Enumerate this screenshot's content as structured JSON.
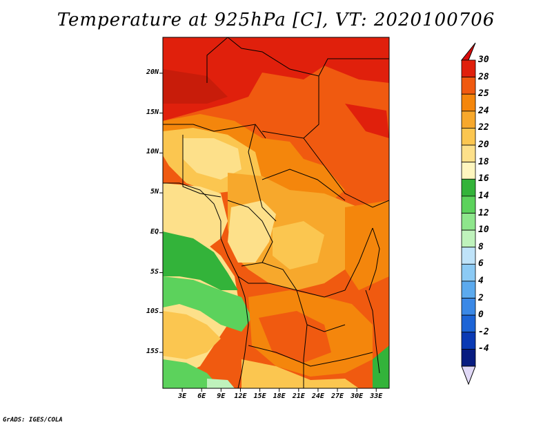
{
  "title": "Temperature at 925hPa [C], VT: 2020100706",
  "credit": "GrADS: IGES/COLA",
  "lat_ticks": [
    {
      "label": "20N",
      "lat": 20
    },
    {
      "label": "15N",
      "lat": 15
    },
    {
      "label": "10N",
      "lat": 10
    },
    {
      "label": "5N",
      "lat": 5
    },
    {
      "label": "EQ",
      "lat": 0
    },
    {
      "label": "5S",
      "lat": -5
    },
    {
      "label": "10S",
      "lat": -10
    },
    {
      "label": "15S",
      "lat": -15
    }
  ],
  "lon_ticks": [
    {
      "label": "3E",
      "lon": 3
    },
    {
      "label": "6E",
      "lon": 6
    },
    {
      "label": "9E",
      "lon": 9
    },
    {
      "label": "12E",
      "lon": 12
    },
    {
      "label": "15E",
      "lon": 15
    },
    {
      "label": "18E",
      "lon": 18
    },
    {
      "label": "21E",
      "lon": 21
    },
    {
      "label": "24E",
      "lon": 24
    },
    {
      "label": "27E",
      "lon": 27
    },
    {
      "label": "30E",
      "lon": 30
    },
    {
      "label": "33E",
      "lon": 33
    }
  ],
  "extent": {
    "lon_min": 0,
    "lon_max": 35,
    "lat_min": -19.5,
    "lat_max": 24.5
  },
  "colorbar": {
    "labels": [
      "30",
      "28",
      "25",
      "24",
      "22",
      "20",
      "18",
      "16",
      "14",
      "12",
      "10",
      "8",
      "6",
      "4",
      "2",
      "0",
      "-2",
      "-4"
    ],
    "colors": [
      "#e0200c",
      "#f05a10",
      "#f4860c",
      "#f7a82c",
      "#fbc650",
      "#fde08a",
      "#fff6bf",
      "#33b33a",
      "#5cd25c",
      "#8ee68c",
      "#bff2bc",
      "#bfe3f9",
      "#8ccaf4",
      "#5caaee",
      "#3a88e6",
      "#1c64d6",
      "#0a3ab4",
      "#081c80"
    ],
    "top_arrow_color": "#d80c0c",
    "bottom_arrow_color": "#e0d8f6"
  }
}
